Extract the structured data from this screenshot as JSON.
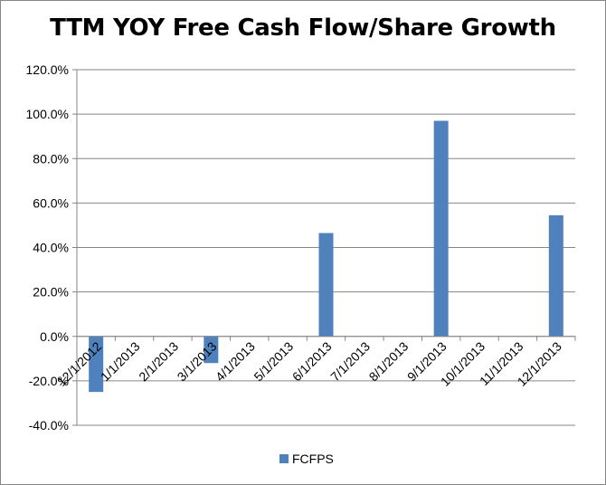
{
  "chart_data": {
    "type": "bar",
    "title": "TTM YOY Free Cash Flow/Share Growth",
    "xlabel": "",
    "ylabel": "",
    "categories": [
      "12/1/2012",
      "1/1/2013",
      "2/1/2013",
      "3/1/2013",
      "4/1/2013",
      "5/1/2013",
      "6/1/2013",
      "7/1/2013",
      "8/1/2013",
      "9/1/2013",
      "10/1/2013",
      "11/1/2013",
      "12/1/2013"
    ],
    "series": [
      {
        "name": "FCFPS",
        "values": [
          -25.0,
          null,
          null,
          -12.0,
          null,
          null,
          46.5,
          null,
          null,
          97.0,
          null,
          null,
          54.5
        ]
      }
    ],
    "ylim": [
      -40,
      120
    ],
    "yticks": [
      "-40.0%",
      "-20.0%",
      "0.0%",
      "20.0%",
      "40.0%",
      "60.0%",
      "80.0%",
      "100.0%",
      "120.0%"
    ],
    "ytick_values": [
      -40,
      -20,
      0,
      20,
      40,
      60,
      80,
      100,
      120
    ],
    "grid": true,
    "legend": "bottom",
    "colors": {
      "bar": "#4F81BD",
      "grid": "#868686",
      "axis": "#868686"
    }
  }
}
